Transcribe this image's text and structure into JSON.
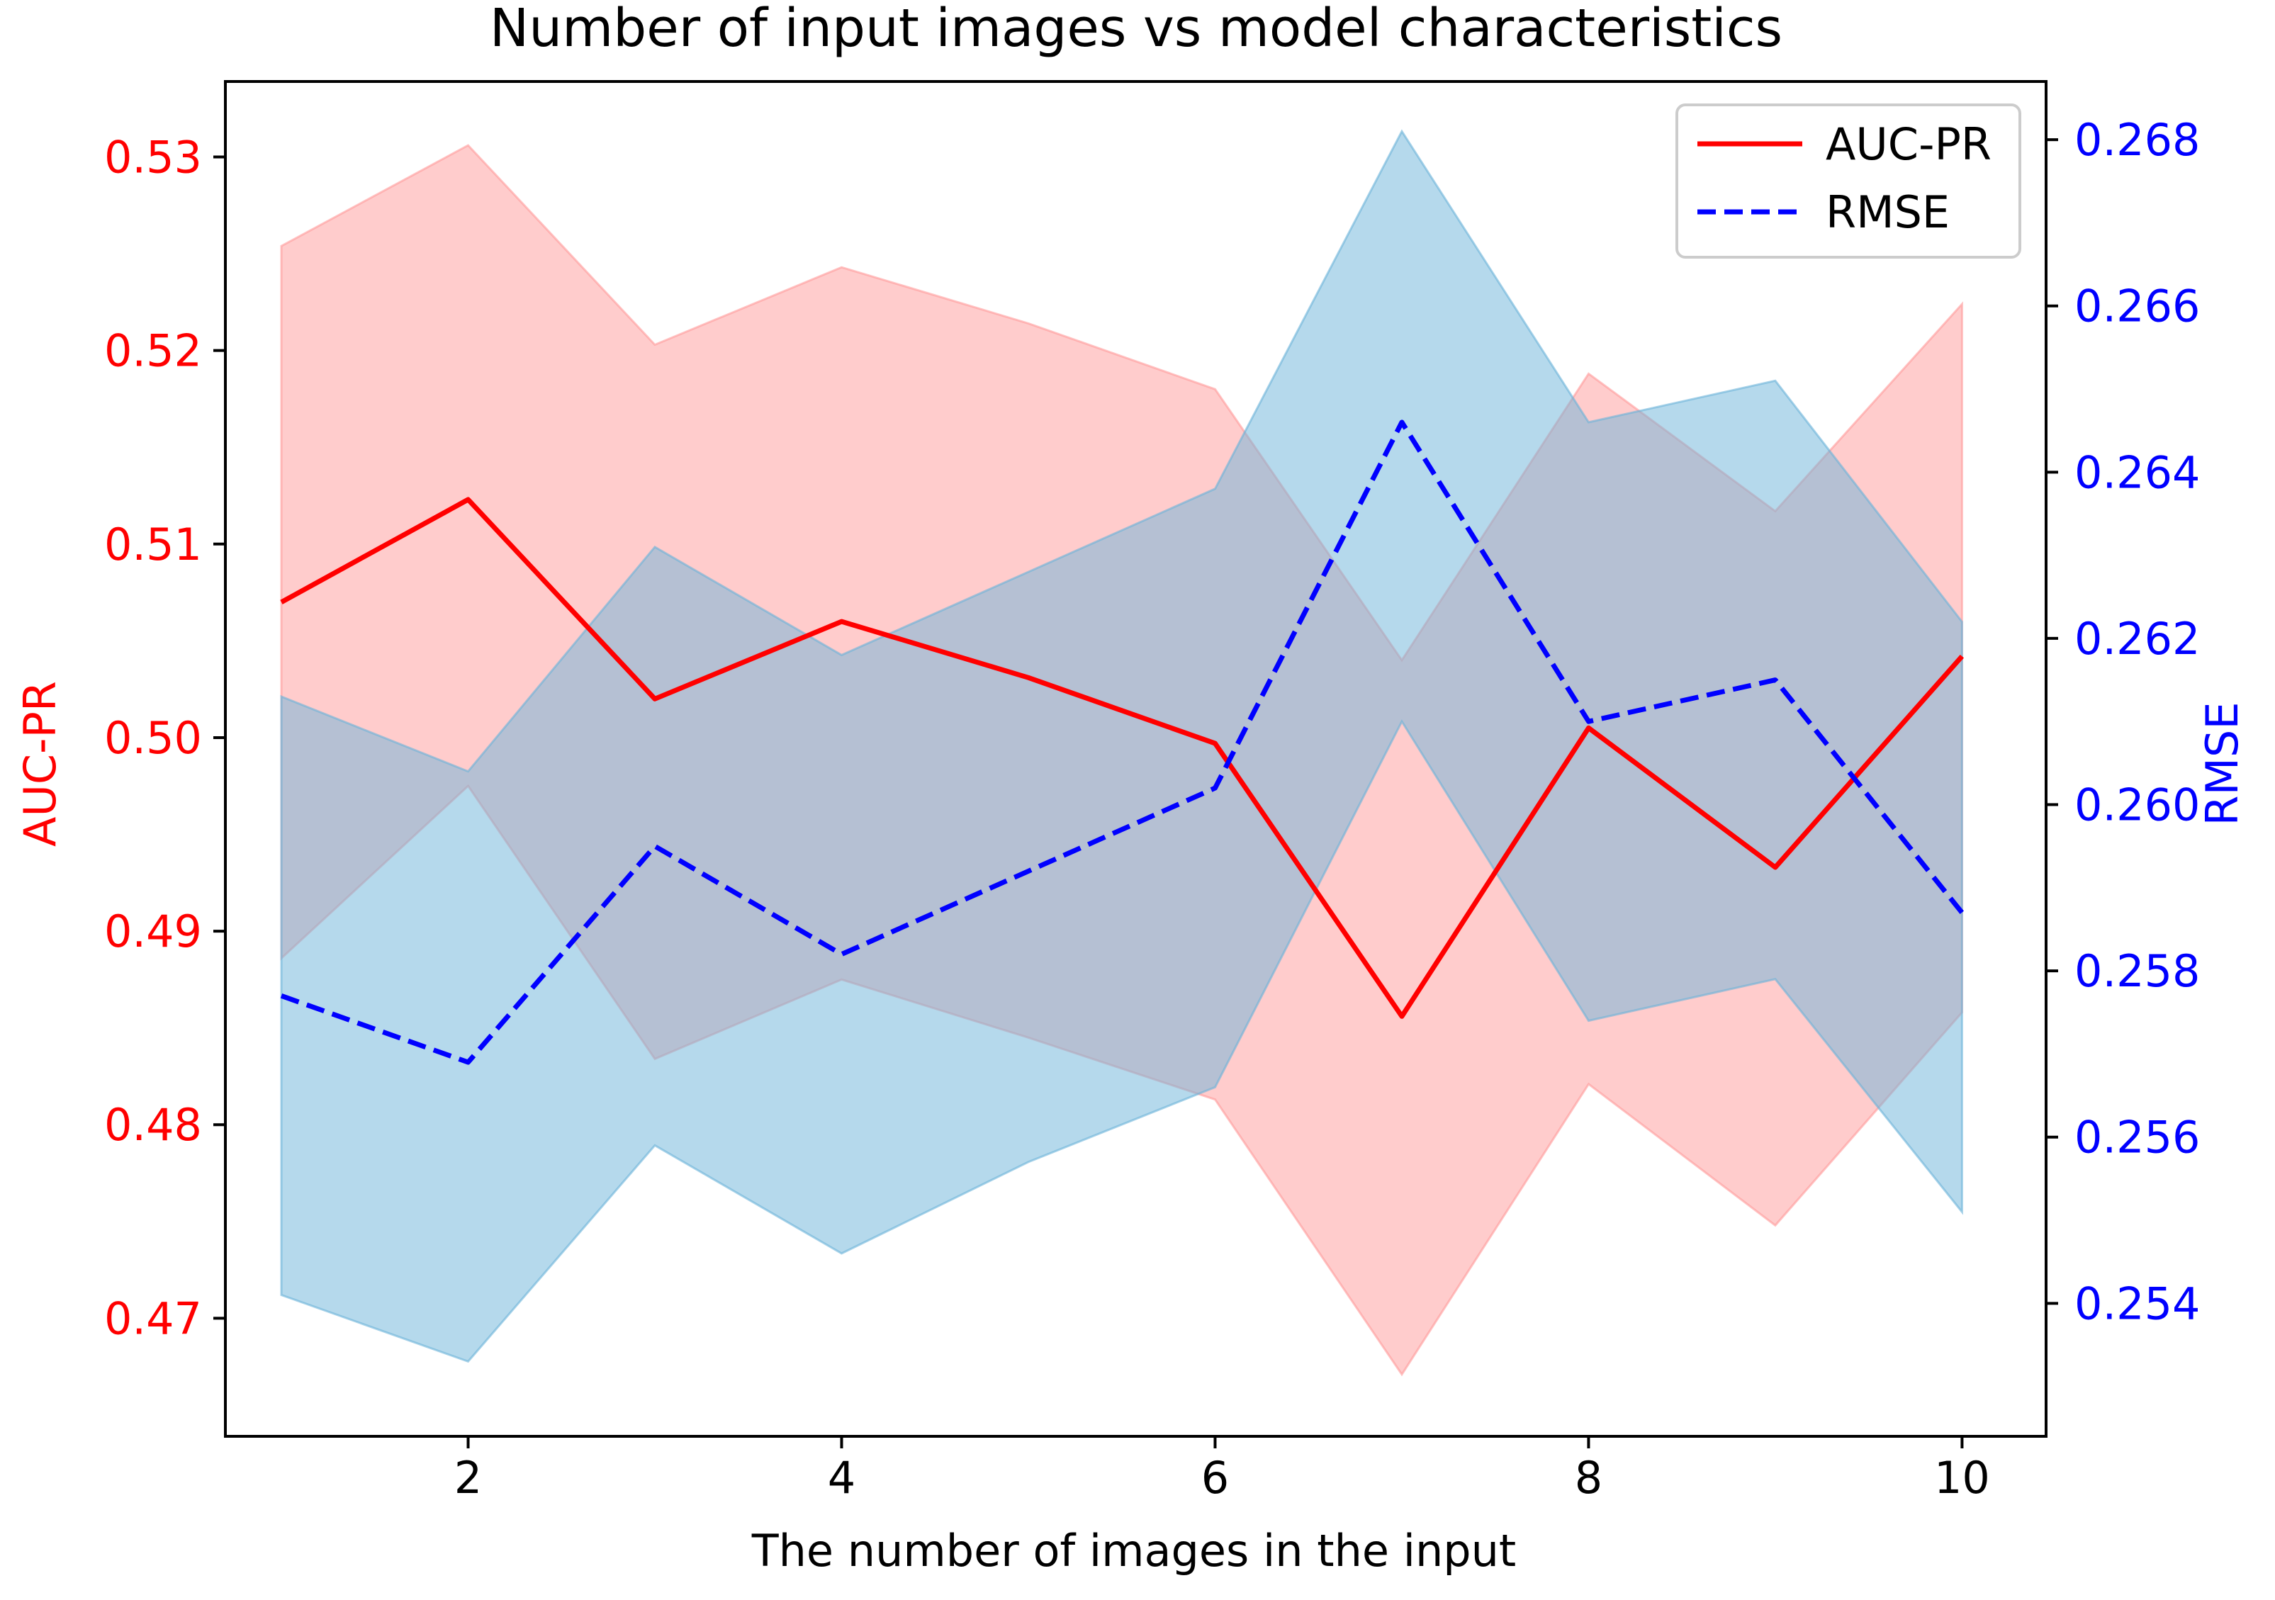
{
  "chart_data": {
    "type": "line",
    "title": "Number of input images vs model characteristics",
    "xlabel": "The number of images in the input",
    "x": [
      1,
      2,
      3,
      4,
      5,
      6,
      7,
      8,
      9,
      10
    ],
    "xlim": [
      0.7,
      10.45
    ],
    "xticks": [
      2,
      4,
      6,
      8,
      10
    ],
    "grid": false,
    "legend_placement": "top-right",
    "axes": {
      "left": {
        "label": "AUC-PR",
        "color": "#ff0000",
        "ylim": [
          0.4639,
          0.5339
        ],
        "ticks": [
          0.47,
          0.48,
          0.49,
          0.5,
          0.51,
          0.52,
          0.53
        ],
        "tick_labels": [
          "0.47",
          "0.48",
          "0.49",
          "0.50",
          "0.51",
          "0.52",
          "0.53"
        ]
      },
      "right": {
        "label": "RMSE",
        "color": "#0000ff",
        "ylim": [
          0.2524,
          0.2687
        ],
        "ticks": [
          0.254,
          0.256,
          0.258,
          0.26,
          0.262,
          0.264,
          0.266,
          0.268
        ],
        "tick_labels": [
          "0.254",
          "0.256",
          "0.258",
          "0.260",
          "0.262",
          "0.264",
          "0.266",
          "0.268"
        ]
      }
    },
    "series": [
      {
        "name": "AUC-PR",
        "axis": "left",
        "color": "#ff0000",
        "line_style": "solid",
        "band_color": "#ff9999",
        "values": [
          0.507,
          0.5123,
          0.502,
          0.506,
          0.5031,
          0.4997,
          0.4856,
          0.5005,
          0.4933,
          0.5042
        ],
        "lower": [
          0.4886,
          0.4975,
          0.4834,
          0.4875,
          0.4845,
          0.4813,
          0.4671,
          0.4821,
          0.4748,
          0.4858
        ],
        "upper": [
          0.5254,
          0.5306,
          0.5203,
          0.5243,
          0.5214,
          0.518,
          0.504,
          0.5188,
          0.5117,
          0.5224
        ]
      },
      {
        "name": "RMSE",
        "axis": "right",
        "color": "#0000ff",
        "line_style": "dashed",
        "band_color": "#6bb3d9",
        "values": [
          0.2577,
          0.2569,
          0.2595,
          0.2582,
          0.2592,
          0.2602,
          0.2646,
          0.261,
          0.2615,
          0.2587
        ],
        "lower": [
          0.2541,
          0.2533,
          0.2559,
          0.2546,
          0.2557,
          0.2566,
          0.261,
          0.2574,
          0.2579,
          0.2551
        ],
        "upper": [
          0.2613,
          0.2604,
          0.2631,
          0.2618,
          0.2628,
          0.2638,
          0.2681,
          0.2646,
          0.2651,
          0.2622
        ]
      }
    ]
  }
}
